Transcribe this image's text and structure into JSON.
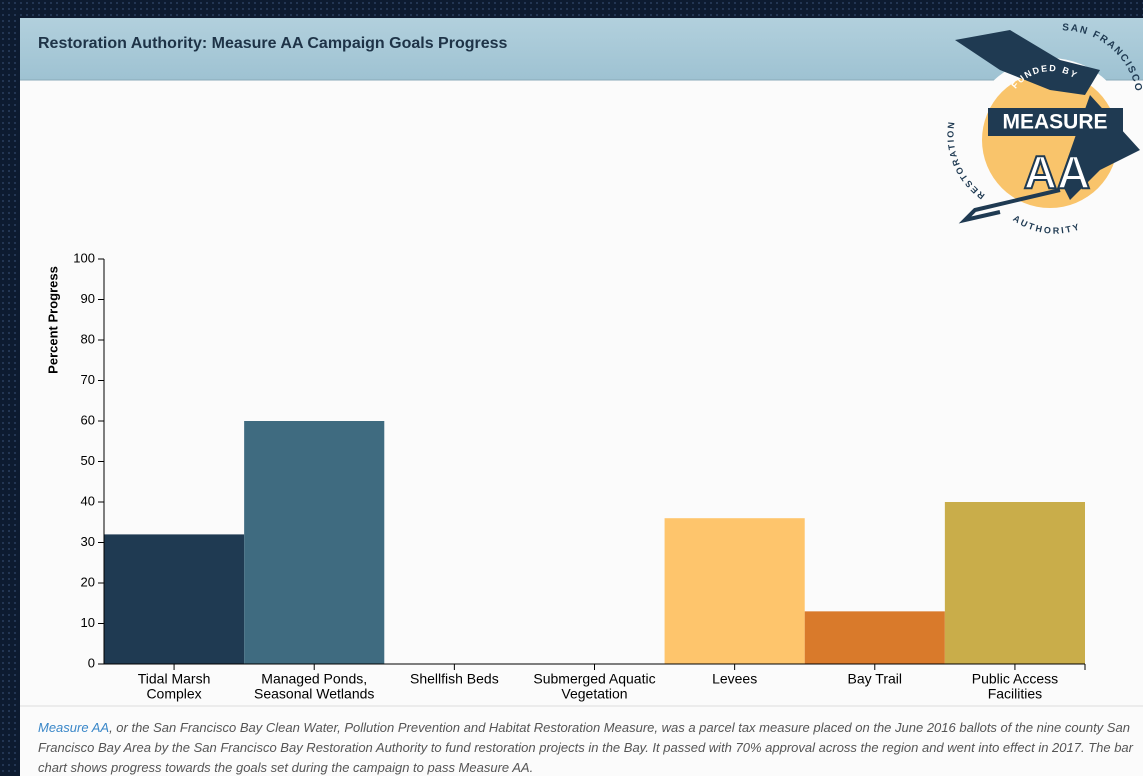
{
  "header": {
    "title": "Restoration Authority: Measure AA Campaign Goals Progress"
  },
  "logo": {
    "top": "SAN FRANCISCO",
    "funded": "FUNDED BY",
    "name": "MEASURE",
    "big": "AA",
    "left": "RESTORATION",
    "bottom": "AUTHORITY"
  },
  "chart_data": {
    "type": "bar",
    "ylabel": "Percent Progress",
    "categories": [
      [
        "Tidal Marsh",
        "Complex"
      ],
      [
        "Managed Ponds,",
        "Seasonal Wetlands"
      ],
      [
        "Shellfish Beds"
      ],
      [
        "Submerged Aquatic",
        "Vegetation"
      ],
      [
        "Levees"
      ],
      [
        "Bay Trail"
      ],
      [
        "Public Access",
        "Facilities"
      ]
    ],
    "values": [
      32,
      60,
      0,
      0,
      36,
      13,
      40
    ],
    "colors": [
      "#1f3a52",
      "#3f6b80",
      "#6a8fa0",
      "#9fb8c4",
      "#fec56c",
      "#d97a2b",
      "#c9ad4a"
    ],
    "ylim": [
      0,
      100
    ],
    "yticks": [
      0,
      10,
      20,
      30,
      40,
      50,
      60,
      70,
      80,
      90,
      100
    ]
  },
  "description": {
    "link": "Measure AA",
    "text": ", or the San Francisco Bay Clean Water, Pollution Prevention and Habitat Restoration Measure, was a parcel tax measure placed on the June 2016 ballots of the nine county San Francisco Bay Area by the San Francisco Bay Restoration Authority to fund restoration projects in the Bay. It passed with 70% approval across the region and went into effect in 2017. The bar chart shows progress towards the goals set during the campaign to pass Measure AA."
  }
}
